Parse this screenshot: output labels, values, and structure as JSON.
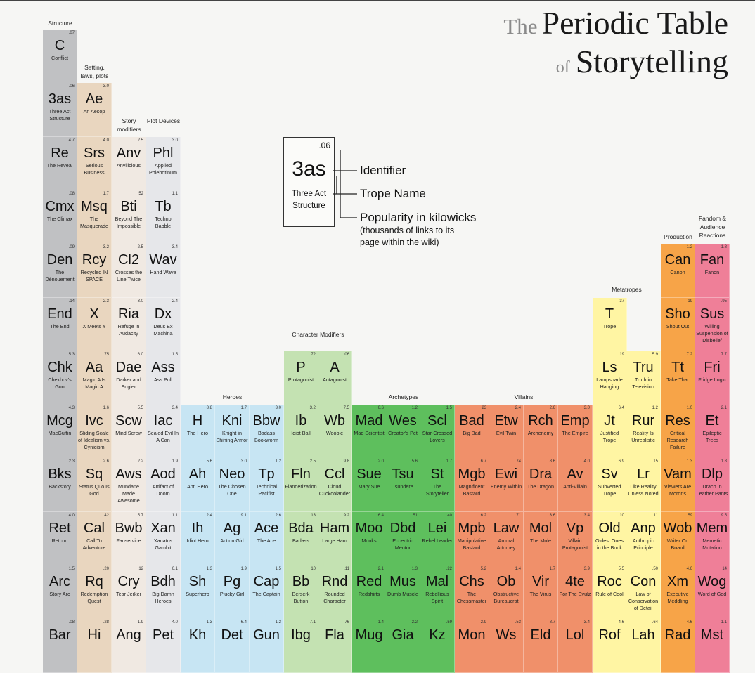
{
  "title": {
    "the": "The",
    "main": "Periodic Table",
    "of": "of",
    "sub": "Storytelling"
  },
  "legend": {
    "pop": ".06",
    "sym": "3as",
    "name": "Three Act Structure",
    "identifier": "Identifier",
    "trope_name": "Trope Name",
    "popularity": "Popularity in kilowicks",
    "popularity_note": "(thousands of links to its page within the wiki)"
  },
  "colors": {
    "structure": "#c0c1c3",
    "setting": "#e9d6bf",
    "modifiers": "#f0e9e2",
    "devices": "#e6e7ea",
    "heroes": "#c7e5f3",
    "char_mod": "#c4e2b2",
    "archetypes": "#5ebf5d",
    "villains": "#f0906a",
    "metatropes": "#fff5a3",
    "production": "#f7a448",
    "fandom": "#ef7f98"
  },
  "groups": [
    {
      "id": "structure",
      "label": "Structure"
    },
    {
      "id": "setting",
      "label": "Setting, laws, plots"
    },
    {
      "id": "modifiers",
      "label": "Story modifiers"
    },
    {
      "id": "devices",
      "label": "Plot Devices"
    },
    {
      "id": "char_mod",
      "label": "Character Modifiers"
    },
    {
      "id": "heroes",
      "label": "Heroes"
    },
    {
      "id": "archetypes",
      "label": "Archetypes"
    },
    {
      "id": "villains",
      "label": "Villains"
    },
    {
      "id": "metatropes",
      "label": "Metatropes"
    },
    {
      "id": "production",
      "label": "Production"
    },
    {
      "id": "fandom",
      "label": "Fandom & Audience Reactions"
    }
  ],
  "cells": [
    {
      "col": 0,
      "row": 0,
      "g": "structure",
      "sym": "C",
      "name": "Conflict",
      "pop": ".07"
    },
    {
      "col": 0,
      "row": 1,
      "g": "structure",
      "sym": "3as",
      "name": "Three Act Structure",
      "pop": ".06"
    },
    {
      "col": 0,
      "row": 2,
      "g": "structure",
      "sym": "Re",
      "name": "The Reveal",
      "pop": "4.7"
    },
    {
      "col": 0,
      "row": 3,
      "g": "structure",
      "sym": "Cmx",
      "name": "The Climax",
      "pop": ".08"
    },
    {
      "col": 0,
      "row": 4,
      "g": "structure",
      "sym": "Den",
      "name": "The Dénouement",
      "pop": ".09"
    },
    {
      "col": 0,
      "row": 5,
      "g": "structure",
      "sym": "End",
      "name": "The End",
      "pop": ".14"
    },
    {
      "col": 0,
      "row": 6,
      "g": "structure",
      "sym": "Chk",
      "name": "Chekhov's Gun",
      "pop": "5.3"
    },
    {
      "col": 0,
      "row": 7,
      "g": "structure",
      "sym": "Mcg",
      "name": "MacGuffin",
      "pop": "4.3"
    },
    {
      "col": 0,
      "row": 8,
      "g": "structure",
      "sym": "Bks",
      "name": "Backstory",
      "pop": "2.3"
    },
    {
      "col": 0,
      "row": 9,
      "g": "structure",
      "sym": "Ret",
      "name": "Retcon",
      "pop": "4.0"
    },
    {
      "col": 0,
      "row": 10,
      "g": "structure",
      "sym": "Arc",
      "name": "Story Arc",
      "pop": "1.5"
    },
    {
      "col": 0,
      "row": 11,
      "g": "structure",
      "sym": "Bar",
      "name": "",
      "pop": ".08"
    },
    {
      "col": 1,
      "row": 1,
      "g": "setting",
      "sym": "Ae",
      "name": "An Aesop",
      "pop": "3.0"
    },
    {
      "col": 1,
      "row": 2,
      "g": "setting",
      "sym": "Srs",
      "name": "Serious Business",
      "pop": "4.0"
    },
    {
      "col": 1,
      "row": 3,
      "g": "setting",
      "sym": "Msq",
      "name": "The Masquerade",
      "pop": "1.7"
    },
    {
      "col": 1,
      "row": 4,
      "g": "setting",
      "sym": "Rcy",
      "name": "Recycled IN SPACE",
      "pop": "3.2"
    },
    {
      "col": 1,
      "row": 5,
      "g": "setting",
      "sym": "X",
      "name": "X Meets Y",
      "pop": "2.3"
    },
    {
      "col": 1,
      "row": 6,
      "g": "setting",
      "sym": "Aa",
      "name": "Magic A Is Magic A",
      "pop": ".75"
    },
    {
      "col": 1,
      "row": 7,
      "g": "setting",
      "sym": "Ivc",
      "name": "Sliding Scale of Idealism vs. Cynicism",
      "pop": "1.6"
    },
    {
      "col": 1,
      "row": 8,
      "g": "setting",
      "sym": "Sq",
      "name": "Status Quo Is God",
      "pop": "2.6"
    },
    {
      "col": 1,
      "row": 9,
      "g": "setting",
      "sym": "Cal",
      "name": "Call To Adventure",
      "pop": ".42"
    },
    {
      "col": 1,
      "row": 10,
      "g": "setting",
      "sym": "Rq",
      "name": "Redemption Quest",
      "pop": ".20"
    },
    {
      "col": 1,
      "row": 11,
      "g": "setting",
      "sym": "Hi",
      "name": "",
      "pop": ".28"
    },
    {
      "col": 2,
      "row": 2,
      "g": "modifiers",
      "sym": "Anv",
      "name": "Anvilicious",
      "pop": "2.5"
    },
    {
      "col": 2,
      "row": 3,
      "g": "modifiers",
      "sym": "Bti",
      "name": "Beyond The Impossible",
      "pop": ".52"
    },
    {
      "col": 2,
      "row": 4,
      "g": "modifiers",
      "sym": "Cl2",
      "name": "Crosses the Line Twice",
      "pop": "2.5"
    },
    {
      "col": 2,
      "row": 5,
      "g": "modifiers",
      "sym": "Ria",
      "name": "Refuge in Audacity",
      "pop": "3.0"
    },
    {
      "col": 2,
      "row": 6,
      "g": "modifiers",
      "sym": "Dae",
      "name": "Darker and Edgier",
      "pop": "6.0"
    },
    {
      "col": 2,
      "row": 7,
      "g": "modifiers",
      "sym": "Scw",
      "name": "Mind Screw",
      "pop": "5.5"
    },
    {
      "col": 2,
      "row": 8,
      "g": "modifiers",
      "sym": "Aws",
      "name": "Mundane Made Awesome",
      "pop": "2.2"
    },
    {
      "col": 2,
      "row": 9,
      "g": "modifiers",
      "sym": "Bwb",
      "name": "Fanservice",
      "pop": "5.7"
    },
    {
      "col": 2,
      "row": 10,
      "g": "modifiers",
      "sym": "Cry",
      "name": "Tear Jerker",
      "pop": "12"
    },
    {
      "col": 2,
      "row": 11,
      "g": "modifiers",
      "sym": "Ang",
      "name": "",
      "pop": "1.9"
    },
    {
      "col": 3,
      "row": 2,
      "g": "devices",
      "sym": "Phl",
      "name": "Applied Phlebotinum",
      "pop": "3.0"
    },
    {
      "col": 3,
      "row": 3,
      "g": "devices",
      "sym": "Tb",
      "name": "Techno Babble",
      "pop": "1.1"
    },
    {
      "col": 3,
      "row": 4,
      "g": "devices",
      "sym": "Wav",
      "name": "Hand Wave",
      "pop": "3.4"
    },
    {
      "col": 3,
      "row": 5,
      "g": "devices",
      "sym": "Dx",
      "name": "Deus Ex Machina",
      "pop": "2.4"
    },
    {
      "col": 3,
      "row": 6,
      "g": "devices",
      "sym": "Ass",
      "name": "Ass Pull",
      "pop": "1.5"
    },
    {
      "col": 3,
      "row": 7,
      "g": "devices",
      "sym": "Iac",
      "name": "Sealed Evil In A Can",
      "pop": "3.4"
    },
    {
      "col": 3,
      "row": 8,
      "g": "devices",
      "sym": "Aod",
      "name": "Artifact of Doom",
      "pop": "1.9"
    },
    {
      "col": 3,
      "row": 9,
      "g": "devices",
      "sym": "Xan",
      "name": "Xanatos Gambit",
      "pop": "1.1"
    },
    {
      "col": 3,
      "row": 10,
      "g": "devices",
      "sym": "Bdh",
      "name": "Big Damn Heroes",
      "pop": "6.1"
    },
    {
      "col": 3,
      "row": 11,
      "g": "devices",
      "sym": "Pet",
      "name": "",
      "pop": "4.0"
    },
    {
      "col": 4,
      "row": 7,
      "g": "heroes",
      "sym": "H",
      "name": "The Hero",
      "pop": "8.8"
    },
    {
      "col": 4,
      "row": 8,
      "g": "heroes",
      "sym": "Ah",
      "name": "Anti Hero",
      "pop": "5.6"
    },
    {
      "col": 4,
      "row": 9,
      "g": "heroes",
      "sym": "Ih",
      "name": "Idiot Hero",
      "pop": "2.4"
    },
    {
      "col": 4,
      "row": 10,
      "g": "heroes",
      "sym": "Sh",
      "name": "Superhero",
      "pop": "1.3"
    },
    {
      "col": 4,
      "row": 11,
      "g": "heroes",
      "sym": "Kh",
      "name": "",
      "pop": "1.3"
    },
    {
      "col": 5,
      "row": 7,
      "g": "heroes",
      "sym": "Kni",
      "name": "Knight in Shining Armor",
      "pop": "1.7"
    },
    {
      "col": 5,
      "row": 8,
      "g": "heroes",
      "sym": "Neo",
      "name": "The Chosen One",
      "pop": "3.0"
    },
    {
      "col": 5,
      "row": 9,
      "g": "heroes",
      "sym": "Ag",
      "name": "Action Girl",
      "pop": "9.1"
    },
    {
      "col": 5,
      "row": 10,
      "g": "heroes",
      "sym": "Pg",
      "name": "Plucky Girl",
      "pop": "1.9"
    },
    {
      "col": 5,
      "row": 11,
      "g": "heroes",
      "sym": "Det",
      "name": "",
      "pop": "6.4"
    },
    {
      "col": 6,
      "row": 7,
      "g": "heroes",
      "sym": "Bbw",
      "name": "Badass Bookworm",
      "pop": "3.0"
    },
    {
      "col": 6,
      "row": 8,
      "g": "heroes",
      "sym": "Tp",
      "name": "Technical Pacifist",
      "pop": "1.2"
    },
    {
      "col": 6,
      "row": 9,
      "g": "heroes",
      "sym": "Ace",
      "name": "The Ace",
      "pop": "2.6"
    },
    {
      "col": 6,
      "row": 10,
      "g": "heroes",
      "sym": "Cap",
      "name": "The Captain",
      "pop": "1.5"
    },
    {
      "col": 6,
      "row": 11,
      "g": "heroes",
      "sym": "Gun",
      "name": "",
      "pop": "1.2"
    },
    {
      "col": 7,
      "row": 6,
      "g": "char_mod",
      "sym": "P",
      "name": "Protagonist",
      "pop": ".72"
    },
    {
      "col": 7,
      "row": 7,
      "g": "char_mod",
      "sym": "Ib",
      "name": "Idiot Ball",
      "pop": "3.2"
    },
    {
      "col": 7,
      "row": 8,
      "g": "char_mod",
      "sym": "Fln",
      "name": "Flanderization",
      "pop": "2.5"
    },
    {
      "col": 7,
      "row": 9,
      "g": "char_mod",
      "sym": "Bda",
      "name": "Badass",
      "pop": "13"
    },
    {
      "col": 7,
      "row": 10,
      "g": "char_mod",
      "sym": "Bb",
      "name": "Berserk Button",
      "pop": "10"
    },
    {
      "col": 7,
      "row": 11,
      "g": "char_mod",
      "sym": "Ibg",
      "name": "",
      "pop": "7.1"
    },
    {
      "col": 8,
      "row": 6,
      "g": "char_mod",
      "sym": "A",
      "name": "Antagonist",
      "pop": ".06"
    },
    {
      "col": 8,
      "row": 7,
      "g": "char_mod",
      "sym": "Wb",
      "name": "Woobie",
      "pop": "7.5"
    },
    {
      "col": 8,
      "row": 8,
      "g": "char_mod",
      "sym": "Ccl",
      "name": "Cloud Cuckoolander",
      "pop": "9.8"
    },
    {
      "col": 8,
      "row": 9,
      "g": "char_mod",
      "sym": "Ham",
      "name": "Large Ham",
      "pop": "9.2"
    },
    {
      "col": 8,
      "row": 10,
      "g": "char_mod",
      "sym": "Rnd",
      "name": "Rounded Character",
      "pop": ".11"
    },
    {
      "col": 8,
      "row": 11,
      "g": "char_mod",
      "sym": "Fla",
      "name": "",
      "pop": ".76"
    },
    {
      "col": 9,
      "row": 7,
      "g": "archetypes",
      "sym": "Mad",
      "name": "Mad Scientist",
      "pop": "6.6"
    },
    {
      "col": 9,
      "row": 8,
      "g": "archetypes",
      "sym": "Sue",
      "name": "Mary Sue",
      "pop": "2.0"
    },
    {
      "col": 9,
      "row": 9,
      "g": "archetypes",
      "sym": "Moo",
      "name": "Mooks",
      "pop": "6.4"
    },
    {
      "col": 9,
      "row": 10,
      "g": "archetypes",
      "sym": "Red",
      "name": "Redshirts",
      "pop": "2.1"
    },
    {
      "col": 9,
      "row": 11,
      "g": "archetypes",
      "sym": "Mug",
      "name": "",
      "pop": "1.4"
    },
    {
      "col": 10,
      "row": 7,
      "g": "archetypes",
      "sym": "Wes",
      "name": "Creator's Pet",
      "pop": "1.2"
    },
    {
      "col": 10,
      "row": 8,
      "g": "archetypes",
      "sym": "Tsu",
      "name": "Tsundere",
      "pop": "5.6"
    },
    {
      "col": 10,
      "row": 9,
      "g": "archetypes",
      "sym": "Dbd",
      "name": "Eccentric Mentor",
      "pop": ".51"
    },
    {
      "col": 10,
      "row": 10,
      "g": "archetypes",
      "sym": "Mus",
      "name": "Dumb Muscle",
      "pop": "1.3"
    },
    {
      "col": 10,
      "row": 11,
      "g": "archetypes",
      "sym": "Gia",
      "name": "",
      "pop": "2.2"
    },
    {
      "col": 11,
      "row": 7,
      "g": "archetypes",
      "sym": "Scl",
      "name": "Star-Crossed Lovers",
      "pop": "1.5"
    },
    {
      "col": 11,
      "row": 8,
      "g": "archetypes",
      "sym": "St",
      "name": "The Storyteller",
      "pop": "1.7"
    },
    {
      "col": 11,
      "row": 9,
      "g": "archetypes",
      "sym": "Lei",
      "name": "Rebel Leader",
      "pop": ".40"
    },
    {
      "col": 11,
      "row": 10,
      "g": "archetypes",
      "sym": "Mal",
      "name": "Rebellious Spirit",
      "pop": ".22"
    },
    {
      "col": 11,
      "row": 11,
      "g": "archetypes",
      "sym": "Kz",
      "name": "",
      "pop": ".59"
    },
    {
      "col": 12,
      "row": 7,
      "g": "villains",
      "sym": "Bad",
      "name": "Big Bad",
      "pop": "23"
    },
    {
      "col": 12,
      "row": 8,
      "g": "villains",
      "sym": "Mgb",
      "name": "Magnificent Bastard",
      "pop": "6.7"
    },
    {
      "col": 12,
      "row": 9,
      "g": "villains",
      "sym": "Mpb",
      "name": "Manipulative Bastard",
      "pop": "6.2"
    },
    {
      "col": 12,
      "row": 10,
      "g": "villains",
      "sym": "Chs",
      "name": "The Chessmaster",
      "pop": "5.2"
    },
    {
      "col": 12,
      "row": 11,
      "g": "villains",
      "sym": "Mon",
      "name": "",
      "pop": "2.9"
    },
    {
      "col": 13,
      "row": 7,
      "g": "villains",
      "sym": "Etw",
      "name": "Evil Twin",
      "pop": "2.4"
    },
    {
      "col": 13,
      "row": 8,
      "g": "villains",
      "sym": "Ewi",
      "name": "Enemy Within",
      "pop": ".74"
    },
    {
      "col": 13,
      "row": 9,
      "g": "villains",
      "sym": "Law",
      "name": "Amoral Attorney",
      "pop": ".71"
    },
    {
      "col": 13,
      "row": 10,
      "g": "villains",
      "sym": "Ob",
      "name": "Obstructive Bureaucrat",
      "pop": "1.4"
    },
    {
      "col": 13,
      "row": 11,
      "g": "villains",
      "sym": "Ws",
      "name": "",
      "pop": ".53"
    },
    {
      "col": 14,
      "row": 7,
      "g": "villains",
      "sym": "Rch",
      "name": "Archenemy",
      "pop": "2.6"
    },
    {
      "col": 14,
      "row": 8,
      "g": "villains",
      "sym": "Dra",
      "name": "The Dragon",
      "pop": "8.6"
    },
    {
      "col": 14,
      "row": 9,
      "g": "villains",
      "sym": "Mol",
      "name": "The Mole",
      "pop": "3.6"
    },
    {
      "col": 14,
      "row": 10,
      "g": "villains",
      "sym": "Vir",
      "name": "The Virus",
      "pop": "1.7"
    },
    {
      "col": 14,
      "row": 11,
      "g": "villains",
      "sym": "Eld",
      "name": "",
      "pop": "8.7"
    },
    {
      "col": 15,
      "row": 7,
      "g": "villains",
      "sym": "Emp",
      "name": "The Empire",
      "pop": "3.0"
    },
    {
      "col": 15,
      "row": 8,
      "g": "villains",
      "sym": "Av",
      "name": "Anti-Villain",
      "pop": "4.0"
    },
    {
      "col": 15,
      "row": 9,
      "g": "villains",
      "sym": "Vp",
      "name": "Villain Protagonist",
      "pop": "3.4"
    },
    {
      "col": 15,
      "row": 10,
      "g": "villains",
      "sym": "4te",
      "name": "For The Evulz",
      "pop": "3.9"
    },
    {
      "col": 15,
      "row": 11,
      "g": "villains",
      "sym": "Lol",
      "name": "",
      "pop": "3.4"
    },
    {
      "col": 16,
      "row": 5,
      "g": "metatropes",
      "sym": "T",
      "name": "Trope",
      "pop": ".37"
    },
    {
      "col": 16,
      "row": 6,
      "g": "metatropes",
      "sym": "Ls",
      "name": "Lampshade Hanging",
      "pop": "19"
    },
    {
      "col": 16,
      "row": 7,
      "g": "metatropes",
      "sym": "Jt",
      "name": "Justified Trope",
      "pop": "6.4"
    },
    {
      "col": 16,
      "row": 8,
      "g": "metatropes",
      "sym": "Sv",
      "name": "Subverted Trope",
      "pop": "6.9"
    },
    {
      "col": 16,
      "row": 9,
      "g": "metatropes",
      "sym": "Old",
      "name": "Oldest Ones in the Book",
      "pop": ".10"
    },
    {
      "col": 16,
      "row": 10,
      "g": "metatropes",
      "sym": "Roc",
      "name": "Rule of Cool",
      "pop": "5.5"
    },
    {
      "col": 16,
      "row": 11,
      "g": "metatropes",
      "sym": "Rof",
      "name": "",
      "pop": "4.6"
    },
    {
      "col": 17,
      "row": 6,
      "g": "metatropes",
      "sym": "Tru",
      "name": "Truth in Television",
      "pop": "5.9"
    },
    {
      "col": 17,
      "row": 7,
      "g": "metatropes",
      "sym": "Rur",
      "name": "Reality Is Unrealistic",
      "pop": "1.2"
    },
    {
      "col": 17,
      "row": 8,
      "g": "metatropes",
      "sym": "Lr",
      "name": "Like Reality Unless Noted",
      "pop": ".15"
    },
    {
      "col": 17,
      "row": 9,
      "g": "metatropes",
      "sym": "Anp",
      "name": "Anthropic Principle",
      "pop": ".11"
    },
    {
      "col": 17,
      "row": 10,
      "g": "metatropes",
      "sym": "Con",
      "name": "Law of Conservation of Detail",
      "pop": ".50"
    },
    {
      "col": 17,
      "row": 11,
      "g": "metatropes",
      "sym": "Lah",
      "name": "",
      "pop": ".64"
    },
    {
      "col": 18,
      "row": 4,
      "g": "production",
      "sym": "Can",
      "name": "Canon",
      "pop": "1.2"
    },
    {
      "col": 18,
      "row": 5,
      "g": "production",
      "sym": "Sho",
      "name": "Shout Out",
      "pop": "19"
    },
    {
      "col": 18,
      "row": 6,
      "g": "production",
      "sym": "Tt",
      "name": "Take That",
      "pop": "7.2"
    },
    {
      "col": 18,
      "row": 7,
      "g": "production",
      "sym": "Res",
      "name": "Critical Research Failure",
      "pop": "1.0"
    },
    {
      "col": 18,
      "row": 8,
      "g": "production",
      "sym": "Vam",
      "name": "Viewers Are Morons",
      "pop": "1.3"
    },
    {
      "col": 18,
      "row": 9,
      "g": "production",
      "sym": "Wob",
      "name": "Writer On Board",
      "pop": ".59"
    },
    {
      "col": 18,
      "row": 10,
      "g": "production",
      "sym": "Xm",
      "name": "Executive Meddling",
      "pop": "4.6"
    },
    {
      "col": 18,
      "row": 11,
      "g": "production",
      "sym": "Rad",
      "name": "",
      "pop": "4.6"
    },
    {
      "col": 19,
      "row": 4,
      "g": "fandom",
      "sym": "Fan",
      "name": "Fanon",
      "pop": "1.8"
    },
    {
      "col": 19,
      "row": 5,
      "g": "fandom",
      "sym": "Sus",
      "name": "Willing Suspension of Disbelief",
      "pop": ".95"
    },
    {
      "col": 19,
      "row": 6,
      "g": "fandom",
      "sym": "Fri",
      "name": "Fridge Logic",
      "pop": "7.7"
    },
    {
      "col": 19,
      "row": 7,
      "g": "fandom",
      "sym": "Et",
      "name": "Epileptic Trees",
      "pop": "2.1"
    },
    {
      "col": 19,
      "row": 8,
      "g": "fandom",
      "sym": "Dlp",
      "name": "Draco In Leather Pants",
      "pop": "1.8"
    },
    {
      "col": 19,
      "row": 9,
      "g": "fandom",
      "sym": "Mem",
      "name": "Memetic Mutation",
      "pop": "9.5"
    },
    {
      "col": 19,
      "row": 10,
      "g": "fandom",
      "sym": "Wog",
      "name": "Word of God",
      "pop": "14"
    },
    {
      "col": 19,
      "row": 11,
      "g": "fandom",
      "sym": "Mst",
      "name": "",
      "pop": "1.1"
    }
  ]
}
